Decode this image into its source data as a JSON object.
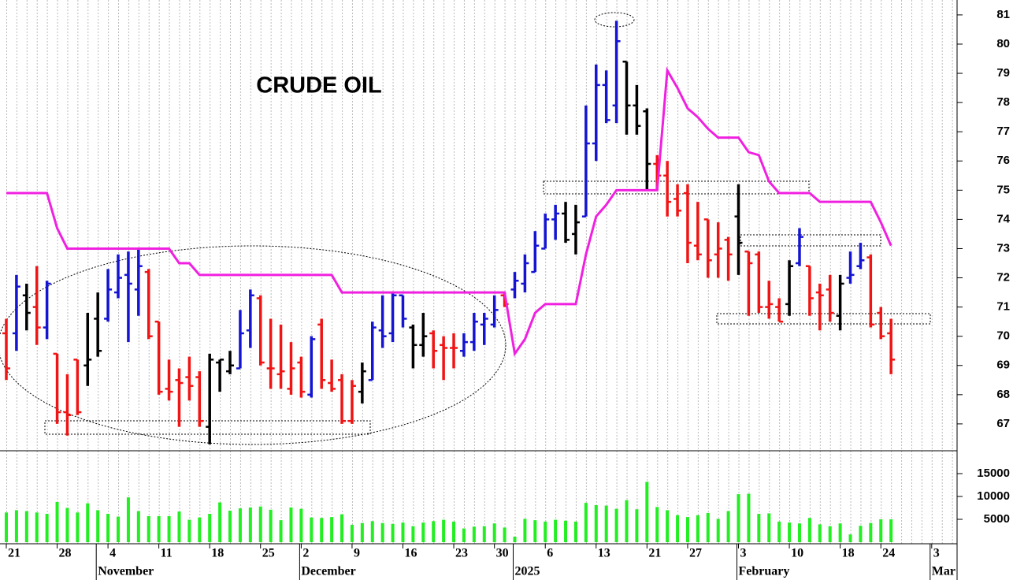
{
  "chart_data": [
    {
      "type": "ohlc",
      "title": "CRUDE OIL",
      "categories": [
        "21",
        null,
        null,
        null,
        null,
        "28",
        null,
        null,
        null,
        null,
        "4",
        null,
        null,
        null,
        null,
        "11",
        null,
        null,
        null,
        null,
        "18",
        null,
        null,
        null,
        null,
        "25",
        null,
        null,
        null,
        "2",
        null,
        null,
        null,
        null,
        "9",
        null,
        null,
        null,
        null,
        "16",
        null,
        null,
        null,
        null,
        "23",
        null,
        null,
        null,
        "30",
        null,
        null,
        null,
        null,
        "6",
        null,
        null,
        null,
        null,
        "13",
        null,
        null,
        null,
        null,
        "21",
        null,
        null,
        null,
        "27",
        null,
        null,
        null,
        null,
        "3",
        null,
        null,
        null,
        null,
        "10",
        null,
        null,
        null,
        null,
        "18",
        null,
        null,
        null,
        "24",
        null,
        null,
        null,
        null,
        "3",
        null,
        null
      ],
      "month_labels": [
        {
          "label": "November",
          "index": 9
        },
        {
          "label": "December",
          "index": 29
        },
        {
          "label": "2025",
          "index": 50
        },
        {
          "label": "February",
          "index": 72
        },
        {
          "label": "Mar",
          "index": 91
        }
      ],
      "open": [
        70.1,
        70.1,
        71.4,
        71.0,
        70.3,
        69.4,
        67.4,
        69.2,
        69.0,
        70.6,
        70.6,
        71.5,
        72.1,
        71.6,
        72.2,
        70.5,
        68.2,
        68.5,
        68.6,
        68.6,
        66.9,
        69.1,
        68.8,
        68.9,
        70.2,
        71.3,
        68.9,
        68.7,
        68.2,
        69.1,
        68.0,
        70.4,
        68.4,
        68.5,
        67.1,
        68.1,
        68.5,
        70.2,
        70.1,
        71.4,
        70.3,
        69.7,
        70.1,
        69.7,
        69.6,
        69.5,
        69.8,
        70.4,
        70.4,
        71.4,
        71.6,
        71.8,
        72.2,
        73.0,
        74.0,
        74.2,
        73.5,
        74.1,
        76.6,
        78.6,
        77.9,
        79.4,
        77.9,
        77.7,
        75.9,
        75.5,
        74.7,
        74.9,
        73.1,
        74.0,
        72.8,
        73.3,
        74.1,
        72.9,
        72.8,
        71.0,
        71.0,
        71.1,
        72.5,
        72.4,
        71.5,
        71.6,
        70.7,
        72.0,
        72.4,
        72.7,
        70.8,
        70.1,
        null,
        null,
        null,
        null,
        null,
        null
      ],
      "high": [
        70.6,
        72.1,
        71.8,
        72.4,
        71.9,
        69.4,
        68.7,
        69.2,
        70.8,
        71.5,
        72.3,
        72.8,
        72.9,
        73.0,
        72.3,
        70.5,
        69.2,
        68.9,
        69.3,
        68.8,
        69.4,
        69.2,
        69.5,
        70.9,
        71.6,
        71.4,
        70.6,
        70.4,
        69.8,
        69.3,
        70.0,
        70.6,
        69.2,
        68.7,
        68.5,
        69.1,
        70.5,
        71.4,
        71.5,
        71.4,
        70.4,
        70.8,
        70.2,
        70.0,
        70.1,
        70.1,
        70.8,
        70.8,
        71.4,
        71.5,
        72.2,
        72.8,
        73.6,
        74.2,
        74.5,
        74.6,
        74.5,
        77.9,
        79.3,
        79.1,
        80.8,
        79.4,
        78.6,
        77.8,
        76.2,
        76.0,
        75.2,
        75.2,
        74.6,
        74.0,
        73.9,
        73.4,
        75.2,
        72.9,
        72.9,
        71.9,
        71.3,
        72.6,
        73.7,
        72.4,
        71.8,
        72.1,
        72.1,
        72.9,
        73.2,
        72.8,
        71.0,
        70.6,
        null,
        null,
        null,
        null,
        null,
        null
      ],
      "low": [
        68.5,
        69.5,
        70.2,
        69.7,
        69.9,
        67.0,
        66.6,
        67.3,
        68.3,
        69.3,
        70.5,
        71.3,
        69.8,
        70.7,
        69.9,
        68.0,
        67.8,
        66.9,
        67.8,
        66.9,
        66.3,
        68.1,
        68.7,
        68.9,
        69.6,
        69.0,
        68.2,
        68.2,
        68.0,
        67.9,
        67.9,
        68.2,
        68.1,
        67.0,
        67.0,
        67.7,
        68.5,
        69.6,
        69.8,
        70.3,
        68.9,
        69.3,
        68.9,
        68.5,
        68.9,
        69.3,
        69.5,
        69.7,
        70.3,
        71.0,
        71.3,
        71.5,
        72.2,
        73.0,
        73.3,
        73.2,
        72.8,
        74.1,
        76.0,
        77.3,
        77.3,
        76.9,
        76.9,
        75.0,
        75.0,
        74.1,
        74.1,
        72.5,
        72.6,
        72.0,
        72.0,
        71.9,
        72.1,
        70.7,
        70.8,
        70.6,
        70.5,
        70.7,
        72.4,
        70.7,
        70.2,
        70.5,
        70.2,
        71.8,
        72.3,
        70.3,
        69.9,
        68.7,
        null,
        null,
        null,
        null,
        null,
        null
      ],
      "close": [
        68.9,
        71.7,
        70.8,
        70.3,
        71.8,
        67.4,
        67.3,
        67.4,
        69.2,
        69.5,
        71.6,
        72.0,
        71.8,
        72.4,
        70.0,
        68.1,
        68.1,
        68.4,
        68.3,
        67.1,
        69.2,
        69.2,
        69.0,
        70.1,
        71.4,
        69.1,
        68.9,
        68.8,
        68.9,
        68.1,
        69.9,
        68.5,
        68.2,
        67.1,
        68.3,
        68.8,
        70.3,
        70.0,
        71.4,
        70.6,
        69.7,
        70.0,
        69.5,
        69.6,
        69.6,
        69.8,
        70.5,
        70.6,
        70.9,
        71.1,
        71.9,
        72.5,
        73.1,
        74.0,
        74.2,
        73.3,
        73.9,
        76.6,
        78.6,
        77.4,
        80.1,
        77.9,
        77.2,
        75.9,
        75.5,
        74.6,
        74.3,
        73.2,
        72.8,
        72.6,
        73.0,
        72.8,
        73.2,
        72.5,
        71.0,
        71.1,
        70.5,
        72.4,
        73.4,
        71.3,
        71.4,
        70.8,
        71.8,
        72.1,
        72.6,
        70.4,
        70.0,
        69.2,
        null,
        null,
        null,
        null,
        null,
        null
      ],
      "colors": [
        "#f01414",
        "#1414d2",
        "#000000",
        "#f01414",
        "#1414d2",
        "#f01414",
        "#f01414",
        "#f01414",
        "#000000",
        "#000000",
        "#1414d2",
        "#1414d2",
        "#1414d2",
        "#1414d2",
        "#f01414",
        "#f01414",
        "#f01414",
        "#f01414",
        "#f01414",
        "#f01414",
        "#000000",
        "#000000",
        "#000000",
        "#1414d2",
        "#1414d2",
        "#f01414",
        "#f01414",
        "#f01414",
        "#f01414",
        "#f01414",
        "#1414d2",
        "#f01414",
        "#f01414",
        "#f01414",
        "#f01414",
        "#000000",
        "#1414d2",
        "#1414d2",
        "#1414d2",
        "#1414d2",
        "#000000",
        "#000000",
        "#f01414",
        "#f01414",
        "#f01414",
        "#1414d2",
        "#1414d2",
        "#1414d2",
        "#1414d2",
        "#f01414",
        "#1414d2",
        "#1414d2",
        "#1414d2",
        "#1414d2",
        "#1414d2",
        "#000000",
        "#000000",
        "#1414d2",
        "#1414d2",
        "#1414d2",
        "#1414d2",
        "#000000",
        "#000000",
        "#000000",
        "#f01414",
        "#f01414",
        "#f01414",
        "#f01414",
        "#f01414",
        "#f01414",
        "#f01414",
        "#f01414",
        "#000000",
        "#f01414",
        "#f01414",
        "#f01414",
        "#f01414",
        "#000000",
        "#1414d2",
        "#f01414",
        "#f01414",
        "#f01414",
        "#000000",
        "#1414d2",
        "#1414d2",
        "#f01414",
        "#f01414",
        "#f01414",
        null,
        null,
        null,
        null,
        null,
        null
      ],
      "stop_line": {
        "color": "#f020e0",
        "values": [
          74.9,
          74.9,
          74.9,
          74.9,
          74.9,
          73.7,
          73.0,
          73.0,
          73.0,
          73.0,
          73.0,
          73.0,
          73.0,
          73.0,
          73.0,
          73.0,
          73.0,
          72.5,
          72.5,
          72.1,
          72.1,
          72.1,
          72.1,
          72.1,
          72.1,
          72.1,
          72.1,
          72.1,
          72.1,
          72.1,
          72.1,
          72.1,
          72.1,
          71.5,
          71.5,
          71.5,
          71.5,
          71.5,
          71.5,
          71.5,
          71.5,
          71.5,
          71.5,
          71.5,
          71.5,
          71.5,
          71.5,
          71.5,
          71.5,
          71.5,
          69.4,
          69.9,
          70.8,
          71.1,
          71.1,
          71.1,
          71.1,
          72.8,
          74.1,
          74.5,
          75.0,
          75.0,
          75.0,
          75.0,
          75.0,
          79.1,
          78.5,
          77.8,
          77.5,
          77.1,
          76.8,
          76.8,
          76.8,
          76.3,
          76.2,
          75.3,
          74.9,
          74.9,
          74.9,
          74.9,
          74.6,
          74.6,
          74.6,
          74.6,
          74.6,
          74.6,
          73.9,
          73.1,
          null,
          null,
          null,
          null,
          null,
          null
        ]
      },
      "ylim": [
        66.08,
        81.51
      ],
      "yticks": [
        67,
        68,
        69,
        70,
        71,
        72,
        73,
        74,
        75,
        76,
        77,
        78,
        79,
        80,
        81
      ]
    },
    {
      "type": "bar",
      "color": "#22ee22",
      "values": [
        6500,
        7000,
        6800,
        6500,
        6200,
        8800,
        7500,
        6500,
        8500,
        7000,
        6200,
        5600,
        9800,
        6800,
        5700,
        5700,
        5700,
        6700,
        4900,
        5400,
        6200,
        8700,
        6900,
        7400,
        7600,
        7800,
        7100,
        4800,
        7600,
        7300,
        5400,
        5300,
        5500,
        6100,
        3800,
        4200,
        4600,
        4200,
        4000,
        4300,
        3500,
        4300,
        4600,
        4900,
        4500,
        3000,
        3400,
        3500,
        4100,
        3200,
        1200,
        5100,
        4800,
        4500,
        4900,
        4700,
        4500,
        8600,
        8100,
        8000,
        7300,
        9200,
        7200,
        13200,
        7700,
        7000,
        5900,
        5500,
        5900,
        6400,
        5100,
        6800,
        10500,
        10600,
        6200,
        6300,
        4500,
        4300,
        4100,
        5300,
        3900,
        3500,
        4100,
        1700,
        3600,
        4200,
        5000,
        5000,
        null,
        null,
        null,
        null,
        null,
        null
      ],
      "ylim": [
        0,
        20000
      ],
      "yticks": [
        5000,
        10000,
        15000
      ]
    }
  ]
}
